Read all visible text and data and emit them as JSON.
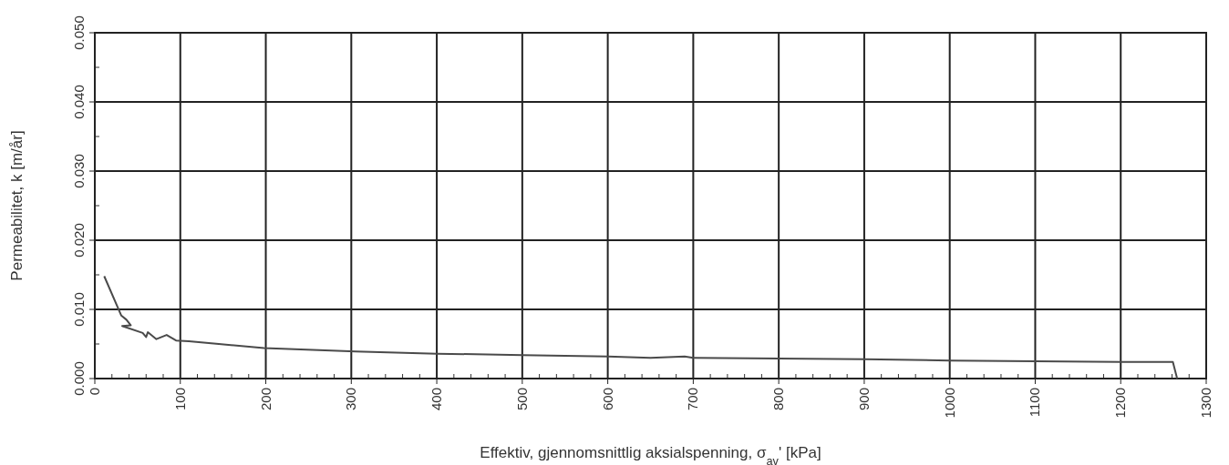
{
  "chart_data": {
    "type": "line",
    "xlabel": "Effektiv, gjennomsnittlig aksialspenning, σ$_{av}$'  [kPa]",
    "ylabel": "Permeabilitet, k [m/år]",
    "series": [
      {
        "color": "#4a4a4a",
        "x": [
          11,
          31,
          37,
          42,
          32,
          56,
          60,
          62,
          72,
          84,
          95,
          110,
          145,
          198,
          305,
          400,
          500,
          600,
          650,
          690,
          700,
          800,
          900,
          1000,
          1100,
          1200,
          1261,
          1266
        ],
        "values": [
          0.0148,
          0.0091,
          0.0085,
          0.0077,
          0.0076,
          0.0066,
          0.006,
          0.0067,
          0.0057,
          0.0063,
          0.0055,
          0.0054,
          0.005,
          0.0044,
          0.0039,
          0.0036,
          0.0034,
          0.0032,
          0.003,
          0.0032,
          0.003,
          0.0029,
          0.0028,
          0.0026,
          0.0025,
          0.0024,
          0.0024,
          0
        ]
      }
    ],
    "xlim": [
      0,
      1300
    ],
    "xticks": [
      0,
      {
        "value": 20,
        "label": null
      },
      {
        "value": 40,
        "label": null
      },
      {
        "value": 60,
        "label": null
      },
      {
        "value": 80,
        "label": null
      },
      100,
      {
        "value": 120,
        "label": null
      },
      {
        "value": 140,
        "label": null
      },
      {
        "value": 160,
        "label": null
      },
      {
        "value": 180,
        "label": null
      },
      200,
      {
        "value": 220,
        "label": null
      },
      {
        "value": 240,
        "label": null
      },
      {
        "value": 260,
        "label": null
      },
      {
        "value": 280,
        "label": null
      },
      300,
      {
        "value": 320,
        "label": null
      },
      {
        "value": 340,
        "label": null
      },
      {
        "value": 360,
        "label": null
      },
      {
        "value": 380,
        "label": null
      },
      400,
      {
        "value": 420,
        "label": null
      },
      {
        "value": 440,
        "label": null
      },
      {
        "value": 460,
        "label": null
      },
      {
        "value": 480,
        "label": null
      },
      500,
      {
        "value": 520,
        "label": null
      },
      {
        "value": 540,
        "label": null
      },
      {
        "value": 560,
        "label": null
      },
      {
        "value": 580,
        "label": null
      },
      600,
      {
        "value": 620,
        "label": null
      },
      {
        "value": 640,
        "label": null
      },
      {
        "value": 660,
        "label": null
      },
      {
        "value": 680,
        "label": null
      },
      700,
      {
        "value": 720,
        "label": null
      },
      {
        "value": 740,
        "label": null
      },
      {
        "value": 760,
        "label": null
      },
      {
        "value": 780,
        "label": null
      },
      800,
      {
        "value": 820,
        "label": null
      },
      {
        "value": 840,
        "label": null
      },
      {
        "value": 860,
        "label": null
      },
      {
        "value": 880,
        "label": null
      },
      900,
      {
        "value": 920,
        "label": null
      },
      {
        "value": 940,
        "label": null
      },
      {
        "value": 960,
        "label": null
      },
      {
        "value": 980,
        "label": null
      },
      1000,
      {
        "value": 1020,
        "label": null
      },
      {
        "value": 1040,
        "label": null
      },
      {
        "value": 1060,
        "label": null
      },
      {
        "value": 1080,
        "label": null
      },
      1100,
      {
        "value": 1120,
        "label": null
      },
      {
        "value": 1140,
        "label": null
      },
      {
        "value": 1160,
        "label": null
      },
      {
        "value": 1180,
        "label": null
      },
      1200,
      {
        "value": 1220,
        "label": null
      },
      {
        "value": 1240,
        "label": null
      },
      {
        "value": 1260,
        "label": null
      },
      {
        "value": 1280,
        "label": null
      },
      1300
    ],
    "ylim": [
      0,
      0.05
    ],
    "yticks": [
      {
        "value": 0,
        "label": "0.000"
      },
      {
        "value": 0.005,
        "label": null
      },
      {
        "value": 0.01,
        "label": "0.010"
      },
      {
        "value": 0.015,
        "label": null
      },
      {
        "value": 0.02,
        "label": "0.020"
      },
      {
        "value": 0.025,
        "label": null
      },
      {
        "value": 0.03,
        "label": "0.030"
      },
      {
        "value": 0.035,
        "label": null
      },
      {
        "value": 0.04,
        "label": "0.040"
      },
      {
        "value": 0.045,
        "label": null
      },
      {
        "value": 0.05,
        "label": "0.050"
      }
    ],
    "grid": true,
    "marker": "none",
    "line_style": "solid"
  }
}
